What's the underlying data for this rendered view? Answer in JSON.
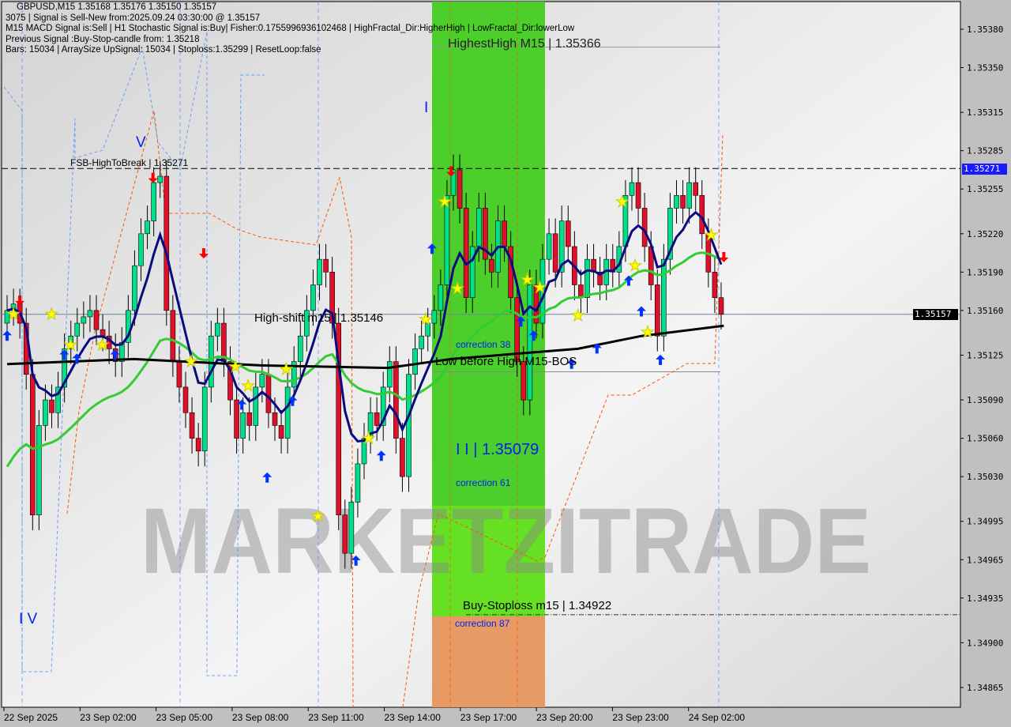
{
  "header": {
    "line1": "GBPUSD,M15  1.35168 1.35176 1.35150 1.35157",
    "line2": "3075 | Signal is Sell-New from:2025.09.24 03:30:00 @ 1.35157",
    "line3": "M15 MACD Signal is:Sell | H1 Stochastic Signal is:Buy| Fisher:0.1755996936102468 | HighFractal_Dir:HigherHigh | LowFractal_Dir:lowerLow",
    "line4": "Previous Signal :Buy-Stop-candle from: 1.35218",
    "line5": "Bars: 15034 | ArraySize UpSignal: 15034 | Stoploss:1.35299 | ResetLoop:false"
  },
  "labels": {
    "highest_high": "HighestHigh   M15 | 1.35366",
    "fsb": "FSB-HighToBreak | 1.35271",
    "high_shift": "High-shift m15 | 1.35146",
    "low_before_high": "Low before High   M15-BOS",
    "correction38": "correction 38",
    "level_iii": "I I | 1.35079",
    "correction61": "correction 61",
    "buy_stoploss": "Buy-Stoploss m15 | 1.34922",
    "correction87": "correction 87",
    "wave_v": "V",
    "wave_i": "I",
    "wave_iv": "I V",
    "watermark": "MARKETZITRADE"
  },
  "chart_data": {
    "type": "candlestick",
    "symbol": "GBPUSD",
    "timeframe": "M15",
    "ylim": [
      1.3485,
      1.35395
    ],
    "y_ticks": [
      "1.35380",
      "1.35350",
      "1.35315",
      "1.35285",
      "1.35255",
      "1.35220",
      "1.35190",
      "1.35160",
      "1.35125",
      "1.35090",
      "1.35060",
      "1.35030",
      "1.34995",
      "1.34965",
      "1.34935",
      "1.34900",
      "1.34865"
    ],
    "x_ticks": [
      "22 Sep 2025",
      "23 Sep 02:00",
      "23 Sep 05:00",
      "23 Sep 08:00",
      "23 Sep 11:00",
      "23 Sep 14:00",
      "23 Sep 17:00",
      "23 Sep 20:00",
      "23 Sep 23:00",
      "24 Sep 02:00"
    ],
    "current_price": "1.35157",
    "fsb_price": "1.35271",
    "levels": {
      "highest_high": 1.35366,
      "fsb": 1.35271,
      "high_shift": 1.35146,
      "low_before_high": 1.35112,
      "buy_stoploss": 1.34922
    },
    "open_first": 1.3515,
    "closes": [
      1.3516,
      1.35165,
      1.3515,
      1.3511,
      1.35,
      1.3507,
      1.3509,
      1.3508,
      1.351,
      1.3513,
      1.3514,
      1.3515,
      1.35155,
      1.3516,
      1.35145,
      1.3514,
      1.3513,
      1.3512,
      1.35135,
      1.3516,
      1.35195,
      1.3522,
      1.3523,
      1.3526,
      1.35265,
      1.3516,
      1.3512,
      1.351,
      1.3508,
      1.3506,
      1.3505,
      1.351,
      1.3514,
      1.3515,
      1.3512,
      1.3509,
      1.3506,
      1.3508,
      1.3507,
      1.351,
      1.3511,
      1.3508,
      1.3507,
      1.3506,
      1.351,
      1.3512,
      1.3514,
      1.3516,
      1.3518,
      1.352,
      1.3519,
      1.3515,
      1.35,
      1.3497,
      1.3501,
      1.3504,
      1.3506,
      1.3508,
      1.3507,
      1.351,
      1.3512,
      1.3506,
      1.3503,
      1.3511,
      1.3513,
      1.3514,
      1.3515,
      1.3516,
      1.3518,
      1.3525,
      1.3527,
      1.3524,
      1.3517,
      1.3521,
      1.3524,
      1.352,
      1.3519,
      1.3523,
      1.3521,
      1.3517,
      1.3512,
      1.3509,
      1.3518,
      1.3515,
      1.352,
      1.3522,
      1.3519,
      1.3523,
      1.3521,
      1.3518,
      1.3517,
      1.352,
      1.3519,
      1.3518,
      1.352,
      1.3519,
      1.3521,
      1.3525,
      1.3526,
      1.3524,
      1.3521,
      1.3518,
      1.3514,
      1.352,
      1.3524,
      1.3525,
      1.3524,
      1.3526,
      1.3525,
      1.3522,
      1.3519,
      1.3517,
      1.35157
    ],
    "slow_ma": [
      [
        0,
        1.35118
      ],
      [
        20,
        1.35122
      ],
      [
        40,
        1.35117
      ],
      [
        60,
        1.35115
      ],
      [
        70,
        1.35122
      ],
      [
        90,
        1.3513
      ],
      [
        100,
        1.3514
      ],
      [
        113,
        1.35148
      ]
    ],
    "up_arrows": [
      [
        0,
        1.3514
      ],
      [
        9,
        1.35125
      ],
      [
        11,
        1.35122
      ],
      [
        17,
        1.35125
      ],
      [
        37,
        1.35086
      ],
      [
        41,
        1.35029
      ],
      [
        45,
        1.35089
      ],
      [
        55,
        1.34964
      ],
      [
        59,
        1.35046
      ],
      [
        67,
        1.35208
      ],
      [
        81,
        1.35151
      ],
      [
        83,
        1.3514
      ],
      [
        89,
        1.35118
      ],
      [
        93,
        1.3513
      ],
      [
        98,
        1.35183
      ],
      [
        100,
        1.35159
      ],
      [
        103,
        1.35121
      ]
    ],
    "down_arrows": [
      [
        2,
        1.35168
      ],
      [
        23,
        1.35264
      ],
      [
        31,
        1.35205
      ],
      [
        70,
        1.35269
      ],
      [
        113,
        1.35202
      ]
    ],
    "stars": [
      [
        1,
        1.35157
      ],
      [
        7,
        1.35157
      ],
      [
        10,
        1.35133
      ],
      [
        15,
        1.35133
      ],
      [
        29,
        1.3512
      ],
      [
        36,
        1.35116
      ],
      [
        38,
        1.35101
      ],
      [
        44,
        1.35114
      ],
      [
        49,
        1.34999
      ],
      [
        57,
        1.3506
      ],
      [
        66,
        1.35153
      ],
      [
        69,
        1.35245
      ],
      [
        71,
        1.35177
      ],
      [
        82,
        1.35184
      ],
      [
        84,
        1.35178
      ],
      [
        90,
        1.35156
      ],
      [
        97,
        1.35245
      ],
      [
        99,
        1.35195
      ],
      [
        101,
        1.35143
      ],
      [
        111,
        1.35219
      ]
    ],
    "colors": {
      "bull": "#00e08a",
      "bear": "#e0102a",
      "fast_ma": "#0a0a80",
      "mid_ma": "#33cc33",
      "slow_ma": "#000000",
      "zone_green": "#4ccf2a",
      "zone_orange": "#e89a64",
      "arrow_up": "#0033ff",
      "arrow_down": "#ff0000",
      "star": "#ffff00"
    }
  }
}
